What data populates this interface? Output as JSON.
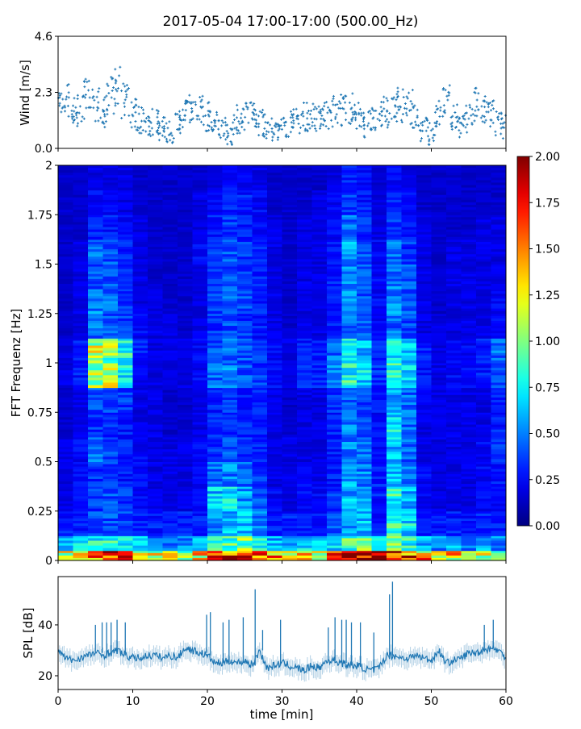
{
  "title": "2017-05-04 17:00-17:00 (500.00_Hz)",
  "chart_data": [
    {
      "type": "scatter",
      "panel": "wind",
      "ylabel": "Wind [m/s]",
      "xlim": [
        0,
        60
      ],
      "ylim": [
        0,
        4.6
      ],
      "yticks": [
        "0.0",
        "2.3",
        "4.6"
      ],
      "marker": "+",
      "color": "#1f77b4",
      "x": [
        0,
        1,
        2,
        3,
        4,
        5,
        6,
        7,
        8,
        9,
        10,
        11,
        12,
        13,
        14,
        15,
        16,
        17,
        18,
        19,
        20,
        21,
        22,
        23,
        24,
        25,
        26,
        27,
        28,
        29,
        30,
        31,
        32,
        33,
        34,
        35,
        36,
        37,
        38,
        39,
        40,
        41,
        42,
        43,
        44,
        45,
        46,
        47,
        48,
        49,
        50,
        51,
        52,
        53,
        54,
        55,
        56,
        57,
        58,
        59,
        60
      ],
      "y": [
        1.8,
        2.0,
        1.5,
        1.6,
        2.1,
        1.8,
        1.5,
        2.2,
        2.5,
        2.0,
        1.4,
        1.2,
        1.0,
        1.1,
        0.8,
        0.7,
        1.0,
        1.5,
        1.7,
        1.6,
        1.3,
        1.0,
        0.8,
        0.6,
        1.2,
        1.4,
        1.3,
        1.1,
        0.9,
        0.8,
        0.9,
        1.0,
        1.2,
        1.3,
        1.4,
        1.2,
        1.3,
        1.5,
        1.6,
        1.6,
        1.4,
        1.0,
        1.1,
        1.3,
        1.5,
        1.6,
        1.8,
        1.7,
        1.2,
        0.8,
        0.6,
        1.4,
        1.9,
        1.3,
        1.0,
        1.2,
        1.8,
        1.5,
        1.4,
        1.0,
        0.9
      ]
    },
    {
      "type": "heatmap",
      "panel": "spectrogram",
      "ylabel": "FFT Frequenz [Hz]",
      "xlim": [
        0,
        60
      ],
      "ylim": [
        0,
        2
      ],
      "yticks": [
        "0",
        "0.25",
        "0.5",
        "0.75",
        "1",
        "1.25",
        "1.5",
        "1.75",
        "2"
      ],
      "colormap": "jet",
      "clim": [
        0,
        2
      ],
      "colorbar_ticks": [
        "0.00",
        "0.25",
        "0.50",
        "0.75",
        "1.00",
        "1.25",
        "1.50",
        "1.75",
        "2.00"
      ],
      "time_bin_min": 2,
      "freq_edges": [
        0,
        0.05,
        0.125,
        0.25,
        0.375,
        0.5,
        0.625,
        0.75,
        0.875,
        1.0,
        1.125,
        1.25,
        1.375,
        1.5,
        1.625,
        1.75,
        1.875,
        2.0
      ],
      "values": [
        [
          1.2,
          1.4,
          1.5,
          1.6,
          1.5,
          1.3,
          1.2,
          1.1,
          1.0,
          1.3,
          1.5,
          1.7,
          1.8,
          1.6,
          1.4,
          1.3,
          1.4,
          1.2,
          1.5,
          1.8,
          2.0,
          1.9,
          1.9,
          1.7,
          1.4,
          1.2,
          1.3,
          1.1,
          1.2,
          1.1
        ],
        [
          0.6,
          0.7,
          0.8,
          0.8,
          0.7,
          0.6,
          0.5,
          0.5,
          0.5,
          0.6,
          0.8,
          0.9,
          1.0,
          0.8,
          0.6,
          0.6,
          0.7,
          0.6,
          0.7,
          0.9,
          1.0,
          0.8,
          0.9,
          0.8,
          0.6,
          0.5,
          0.6,
          0.5,
          0.6,
          0.5
        ],
        [
          0.3,
          0.3,
          0.4,
          0.4,
          0.4,
          0.3,
          0.3,
          0.3,
          0.3,
          0.3,
          0.5,
          0.6,
          0.6,
          0.5,
          0.3,
          0.3,
          0.3,
          0.3,
          0.4,
          0.6,
          0.6,
          0.3,
          0.8,
          0.7,
          0.3,
          0.3,
          0.3,
          0.3,
          0.3,
          0.3
        ],
        [
          0.2,
          0.25,
          0.35,
          0.4,
          0.35,
          0.25,
          0.2,
          0.2,
          0.2,
          0.25,
          0.65,
          0.7,
          0.55,
          0.4,
          0.25,
          0.2,
          0.25,
          0.25,
          0.35,
          0.6,
          0.55,
          0.3,
          0.8,
          0.6,
          0.25,
          0.2,
          0.2,
          0.2,
          0.25,
          0.25
        ],
        [
          0.2,
          0.25,
          0.35,
          0.35,
          0.3,
          0.25,
          0.2,
          0.2,
          0.2,
          0.25,
          0.45,
          0.5,
          0.45,
          0.35,
          0.2,
          0.2,
          0.25,
          0.2,
          0.3,
          0.55,
          0.5,
          0.3,
          0.6,
          0.5,
          0.25,
          0.2,
          0.2,
          0.2,
          0.25,
          0.3
        ],
        [
          0.2,
          0.25,
          0.45,
          0.4,
          0.3,
          0.25,
          0.2,
          0.2,
          0.2,
          0.25,
          0.35,
          0.4,
          0.35,
          0.3,
          0.2,
          0.2,
          0.2,
          0.2,
          0.3,
          0.5,
          0.45,
          0.25,
          0.65,
          0.45,
          0.2,
          0.2,
          0.2,
          0.2,
          0.25,
          0.35
        ],
        [
          0.15,
          0.2,
          0.35,
          0.35,
          0.3,
          0.2,
          0.2,
          0.15,
          0.15,
          0.2,
          0.3,
          0.35,
          0.35,
          0.3,
          0.2,
          0.15,
          0.2,
          0.2,
          0.3,
          0.5,
          0.4,
          0.25,
          0.7,
          0.45,
          0.2,
          0.2,
          0.2,
          0.2,
          0.2,
          0.3
        ],
        [
          0.15,
          0.2,
          0.4,
          0.4,
          0.35,
          0.2,
          0.2,
          0.15,
          0.15,
          0.2,
          0.3,
          0.35,
          0.3,
          0.3,
          0.2,
          0.15,
          0.2,
          0.2,
          0.35,
          0.45,
          0.4,
          0.3,
          0.55,
          0.45,
          0.25,
          0.2,
          0.2,
          0.2,
          0.2,
          0.3
        ],
        [
          0.2,
          0.3,
          1.0,
          1.1,
          0.7,
          0.25,
          0.2,
          0.2,
          0.2,
          0.25,
          0.45,
          0.5,
          0.4,
          0.35,
          0.25,
          0.2,
          0.3,
          0.3,
          0.5,
          0.8,
          0.7,
          0.35,
          0.85,
          0.65,
          0.3,
          0.2,
          0.25,
          0.25,
          0.3,
          0.45
        ],
        [
          0.2,
          0.3,
          1.1,
          1.0,
          0.8,
          0.3,
          0.2,
          0.2,
          0.2,
          0.25,
          0.4,
          0.45,
          0.4,
          0.35,
          0.25,
          0.2,
          0.3,
          0.3,
          0.45,
          0.7,
          0.6,
          0.35,
          0.8,
          0.6,
          0.3,
          0.2,
          0.25,
          0.25,
          0.3,
          0.45
        ],
        [
          0.15,
          0.2,
          0.45,
          0.4,
          0.35,
          0.25,
          0.2,
          0.2,
          0.15,
          0.2,
          0.35,
          0.4,
          0.35,
          0.3,
          0.2,
          0.15,
          0.2,
          0.2,
          0.3,
          0.45,
          0.4,
          0.25,
          0.45,
          0.4,
          0.2,
          0.2,
          0.2,
          0.2,
          0.2,
          0.25
        ],
        [
          0.15,
          0.2,
          0.5,
          0.45,
          0.35,
          0.2,
          0.2,
          0.15,
          0.15,
          0.2,
          0.4,
          0.45,
          0.4,
          0.3,
          0.2,
          0.15,
          0.2,
          0.2,
          0.3,
          0.5,
          0.4,
          0.25,
          0.5,
          0.4,
          0.2,
          0.15,
          0.2,
          0.2,
          0.2,
          0.25
        ],
        [
          0.15,
          0.2,
          0.4,
          0.4,
          0.3,
          0.2,
          0.15,
          0.15,
          0.15,
          0.2,
          0.35,
          0.4,
          0.35,
          0.3,
          0.2,
          0.15,
          0.2,
          0.2,
          0.3,
          0.5,
          0.4,
          0.25,
          0.5,
          0.4,
          0.2,
          0.15,
          0.2,
          0.2,
          0.2,
          0.2
        ],
        [
          0.15,
          0.2,
          0.45,
          0.4,
          0.3,
          0.2,
          0.15,
          0.15,
          0.15,
          0.25,
          0.35,
          0.4,
          0.35,
          0.3,
          0.2,
          0.15,
          0.2,
          0.2,
          0.3,
          0.55,
          0.4,
          0.25,
          0.45,
          0.35,
          0.2,
          0.15,
          0.2,
          0.2,
          0.2,
          0.2
        ],
        [
          0.15,
          0.15,
          0.3,
          0.3,
          0.25,
          0.2,
          0.15,
          0.15,
          0.15,
          0.2,
          0.3,
          0.35,
          0.3,
          0.25,
          0.2,
          0.15,
          0.2,
          0.2,
          0.25,
          0.45,
          0.35,
          0.2,
          0.35,
          0.3,
          0.2,
          0.15,
          0.15,
          0.15,
          0.2,
          0.2
        ],
        [
          0.15,
          0.15,
          0.25,
          0.25,
          0.2,
          0.15,
          0.15,
          0.15,
          0.15,
          0.2,
          0.25,
          0.3,
          0.3,
          0.25,
          0.15,
          0.15,
          0.15,
          0.2,
          0.25,
          0.35,
          0.3,
          0.2,
          0.3,
          0.25,
          0.15,
          0.15,
          0.15,
          0.15,
          0.15,
          0.15
        ],
        [
          0.15,
          0.15,
          0.2,
          0.2,
          0.2,
          0.15,
          0.15,
          0.15,
          0.15,
          0.15,
          0.2,
          0.25,
          0.25,
          0.2,
          0.15,
          0.15,
          0.15,
          0.15,
          0.2,
          0.3,
          0.25,
          0.15,
          0.25,
          0.2,
          0.15,
          0.15,
          0.15,
          0.15,
          0.15,
          0.15
        ]
      ]
    },
    {
      "type": "line",
      "panel": "spl",
      "ylabel": "SPL [dB]",
      "xlabel": "time [min]",
      "xlim": [
        0,
        60
      ],
      "ylim": [
        14.6,
        59
      ],
      "xticks": [
        "0",
        "10",
        "20",
        "30",
        "40",
        "50",
        "60"
      ],
      "yticks": [
        "20",
        "40"
      ],
      "color": "#1f77b4",
      "x": [
        0,
        1,
        2,
        3,
        4,
        5,
        6,
        7,
        8,
        9,
        10,
        11,
        12,
        13,
        14,
        15,
        16,
        17,
        18,
        19,
        20,
        21,
        22,
        23,
        24,
        25,
        26,
        27,
        28,
        29,
        30,
        31,
        32,
        33,
        34,
        35,
        36,
        37,
        38,
        39,
        40,
        41,
        42,
        43,
        44,
        45,
        46,
        47,
        48,
        49,
        50,
        51,
        52,
        53,
        54,
        55,
        56,
        57,
        58,
        59,
        60
      ],
      "y": [
        30,
        27,
        26,
        27,
        28,
        29,
        28,
        29,
        30,
        28,
        27,
        27,
        28,
        28,
        27,
        28,
        27,
        31,
        30,
        29,
        28,
        25,
        25,
        26,
        25,
        26,
        24,
        30,
        23,
        24,
        25,
        24,
        23,
        22,
        24,
        23,
        26,
        26,
        25,
        24,
        24,
        23,
        22,
        23,
        28,
        28,
        27,
        27,
        28,
        27,
        26,
        30,
        25,
        26,
        27,
        29,
        29,
        30,
        31,
        30,
        27
      ],
      "spikes": [
        [
          5,
          40
        ],
        [
          5.9,
          41
        ],
        [
          6.5,
          41
        ],
        [
          7.1,
          41
        ],
        [
          7.9,
          42
        ],
        [
          9.0,
          41
        ],
        [
          19.9,
          44
        ],
        [
          20.4,
          45
        ],
        [
          22.1,
          41
        ],
        [
          22.9,
          42
        ],
        [
          24.8,
          43
        ],
        [
          26.4,
          54
        ],
        [
          27.4,
          38
        ],
        [
          29.8,
          42
        ],
        [
          36.2,
          39
        ],
        [
          37.1,
          43
        ],
        [
          38.0,
          42
        ],
        [
          38.6,
          42
        ],
        [
          39.3,
          41
        ],
        [
          40.5,
          41
        ],
        [
          42.3,
          37
        ],
        [
          44.4,
          52
        ],
        [
          44.8,
          57
        ],
        [
          57.1,
          40
        ],
        [
          58.3,
          42
        ]
      ]
    }
  ]
}
